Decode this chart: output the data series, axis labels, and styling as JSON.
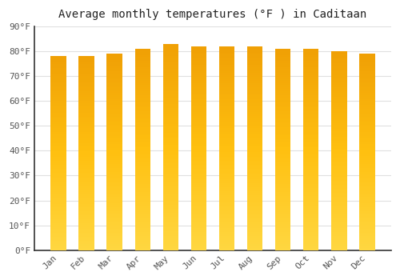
{
  "title": "Average monthly temperatures (°F ) in Caditaan",
  "categories": [
    "Jan",
    "Feb",
    "Mar",
    "Apr",
    "May",
    "Jun",
    "Jul",
    "Aug",
    "Sep",
    "Oct",
    "Nov",
    "Dec"
  ],
  "values": [
    78,
    78,
    79,
    81,
    83,
    82,
    82,
    82,
    81,
    81,
    80,
    79
  ],
  "bar_color_main": "#F5A623",
  "bar_color_center": "#FFD740",
  "background_color": "#FFFFFF",
  "plot_bg_color": "#FFFFFF",
  "grid_color": "#E0E0E0",
  "spine_color": "#333333",
  "text_color": "#555555",
  "ylim": [
    0,
    90
  ],
  "ytick_step": 10,
  "title_fontsize": 10,
  "tick_fontsize": 8,
  "bar_width": 0.55
}
